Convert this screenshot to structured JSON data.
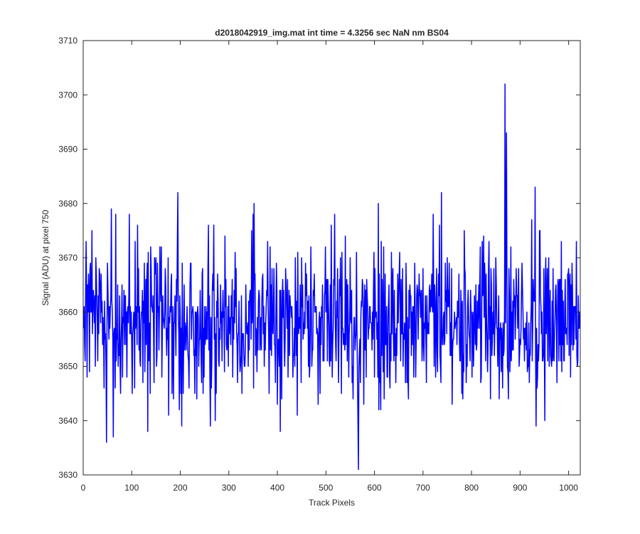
{
  "chart_data": {
    "type": "line",
    "title": "d2018042919_img.mat int time = 4.3256 sec  NaN nm BS04",
    "xlabel": "Track Pixels",
    "ylabel": "Signal (ADU) at pixel 750",
    "xlim": [
      0,
      1024
    ],
    "ylim": [
      3630,
      3710
    ],
    "xticks": [
      0,
      100,
      200,
      300,
      400,
      500,
      600,
      700,
      800,
      900,
      1000
    ],
    "yticks": [
      3630,
      3640,
      3650,
      3660,
      3670,
      3680,
      3690,
      3700,
      3710
    ],
    "grid": false,
    "legend": "none",
    "series": [
      {
        "color": "#0000ff",
        "noise_model": {
          "n_points": 1024,
          "mean": 3658,
          "std": 7
        },
        "points": [
          [
            1,
            3657
          ],
          [
            5,
            3664
          ],
          [
            8,
            3648
          ],
          [
            14,
            3668
          ],
          [
            18,
            3675
          ],
          [
            26,
            3670
          ],
          [
            34,
            3667
          ],
          [
            43,
            3646
          ],
          [
            48,
            3636
          ],
          [
            53,
            3655
          ],
          [
            58,
            3679
          ],
          [
            62,
            3637
          ],
          [
            76,
            3650
          ],
          [
            95,
            3678
          ],
          [
            101,
            3645
          ],
          [
            107,
            3673
          ],
          [
            112,
            3676
          ],
          [
            133,
            3638
          ],
          [
            150,
            3670
          ],
          [
            160,
            3662
          ],
          [
            176,
            3641
          ],
          [
            195,
            3682
          ],
          [
            203,
            3639
          ],
          [
            220,
            3665
          ],
          [
            240,
            3655
          ],
          [
            262,
            3639
          ],
          [
            290,
            3660
          ],
          [
            315,
            3668
          ],
          [
            325,
            3652
          ],
          [
            347,
            3675
          ],
          [
            350,
            3678
          ],
          [
            352,
            3680
          ],
          [
            375,
            3653
          ],
          [
            380,
            3673
          ],
          [
            400,
            3643
          ],
          [
            406,
            3638
          ],
          [
            425,
            3652
          ],
          [
            449,
            3647
          ],
          [
            467,
            3650
          ],
          [
            484,
            3643
          ],
          [
            505,
            3662
          ],
          [
            511,
            3676
          ],
          [
            518,
            3678
          ],
          [
            520,
            3654
          ],
          [
            530,
            3670
          ],
          [
            547,
            3648
          ],
          [
            560,
            3653
          ],
          [
            567,
            3631
          ],
          [
            580,
            3665
          ],
          [
            600,
            3648
          ],
          [
            608,
            3680
          ],
          [
            613,
            3642
          ],
          [
            630,
            3665
          ],
          [
            650,
            3663
          ],
          [
            670,
            3644
          ],
          [
            700,
            3668
          ],
          [
            719,
            3661
          ],
          [
            734,
            3676
          ],
          [
            738,
            3682
          ],
          [
            745,
            3655
          ],
          [
            760,
            3643
          ],
          [
            800,
            3660
          ],
          [
            820,
            3648
          ],
          [
            840,
            3668
          ],
          [
            857,
            3644
          ],
          [
            866,
            3652
          ],
          [
            869,
            3702
          ],
          [
            872,
            3693
          ],
          [
            876,
            3644
          ],
          [
            890,
            3655
          ],
          [
            912,
            3658
          ],
          [
            931,
            3683
          ],
          [
            951,
            3640
          ],
          [
            960,
            3650
          ],
          [
            981,
            3666
          ],
          [
            991,
            3651
          ],
          [
            1000,
            3668
          ],
          [
            1012,
            3661
          ],
          [
            1016,
            3673
          ],
          [
            1023,
            3660
          ]
        ]
      }
    ]
  }
}
